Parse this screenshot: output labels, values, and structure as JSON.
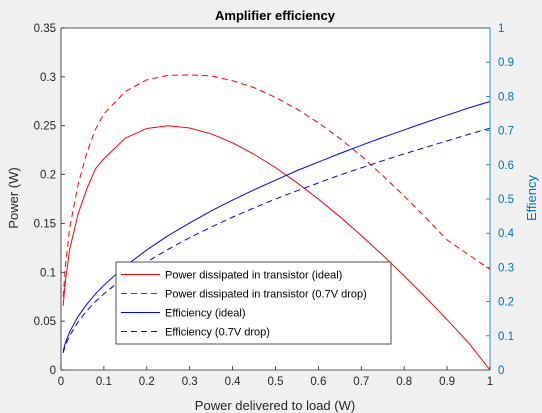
{
  "chart_data": {
    "type": "line",
    "title": "Amplifier efficiency",
    "xlabel": "Power delivered to load (W)",
    "ylabel": "Power (W)",
    "ylabel_right": "Effiency",
    "xlim": [
      0,
      1
    ],
    "ylim": [
      0,
      0.35
    ],
    "ylim_right": [
      0,
      1
    ],
    "x_ticks": [
      "0",
      "0.1",
      "0.2",
      "0.3",
      "0.4",
      "0.5",
      "0.6",
      "0.7",
      "0.8",
      "0.9",
      "1"
    ],
    "y_ticks": [
      "0",
      "0.05",
      "0.1",
      "0.15",
      "0.2",
      "0.25",
      "0.3",
      "0.35"
    ],
    "y_ticks_right": [
      "0",
      "0.1",
      "0.2",
      "0.3",
      "0.4",
      "0.5",
      "0.6",
      "0.7",
      "0.8",
      "0.9",
      "1"
    ],
    "grid": false,
    "legend_position": "bottom-center",
    "x": [
      0.005,
      0.01,
      0.02,
      0.04,
      0.06,
      0.08,
      0.1,
      0.15,
      0.2,
      0.25,
      0.3,
      0.35,
      0.4,
      0.45,
      0.5,
      0.55,
      0.6,
      0.65,
      0.7,
      0.75,
      0.8,
      0.85,
      0.9,
      0.95,
      1.0
    ],
    "series": [
      {
        "name": "Power dissipated in transistor (ideal)",
        "axis": "left",
        "color": "#ff0000",
        "style": "solid",
        "values": [
          0.0657,
          0.09,
          0.1228,
          0.16,
          0.185,
          0.2057,
          0.2162,
          0.2373,
          0.2472,
          0.25,
          0.2477,
          0.2417,
          0.2325,
          0.2208,
          0.2071,
          0.1917,
          0.1749,
          0.1569,
          0.1377,
          0.1175,
          0.0963,
          0.0743,
          0.0515,
          0.028,
          0.0
        ]
      },
      {
        "name": "Power dissipated in transistor (0.7V drop)",
        "axis": "left",
        "color": "#ff0000",
        "style": "dashed",
        "values": [
          0.075,
          0.105,
          0.145,
          0.19,
          0.222,
          0.246,
          0.262,
          0.285,
          0.297,
          0.3015,
          0.302,
          0.301,
          0.296,
          0.289,
          0.279,
          0.267,
          0.253,
          0.237,
          0.219,
          0.199,
          0.178,
          0.156,
          0.133,
          0.118,
          0.103
        ]
      },
      {
        "name": "Efficiency (ideal)",
        "axis": "right",
        "color": "#0000ff",
        "style": "solid",
        "values": [
          0.0555,
          0.0785,
          0.111,
          0.157,
          0.192,
          0.222,
          0.248,
          0.304,
          0.351,
          0.393,
          0.43,
          0.465,
          0.497,
          0.527,
          0.555,
          0.583,
          0.608,
          0.633,
          0.657,
          0.68,
          0.702,
          0.724,
          0.745,
          0.766,
          0.785
        ]
      },
      {
        "name": "Efficiency (0.7V drop)",
        "axis": "right",
        "color": "#0000ff",
        "style": "dashed",
        "values": [
          0.05,
          0.071,
          0.1,
          0.141,
          0.173,
          0.2,
          0.223,
          0.273,
          0.316,
          0.353,
          0.387,
          0.418,
          0.447,
          0.474,
          0.5,
          0.524,
          0.547,
          0.57,
          0.591,
          0.612,
          0.632,
          0.651,
          0.67,
          0.689,
          0.707
        ]
      }
    ]
  }
}
